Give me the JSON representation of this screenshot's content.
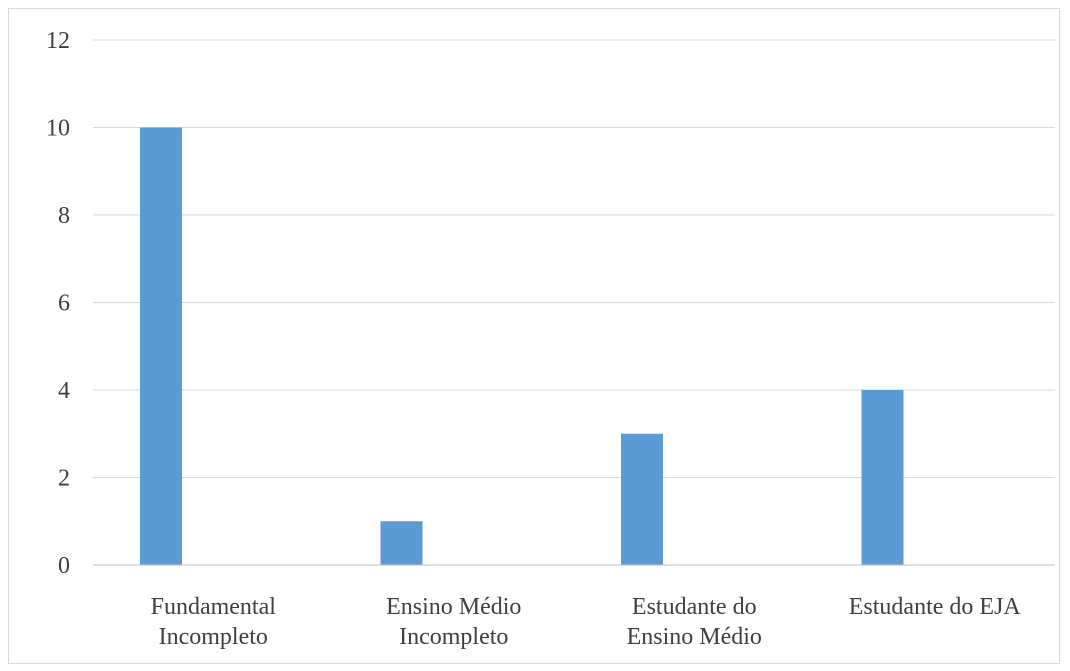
{
  "chart_data": {
    "type": "bar",
    "title": "",
    "xlabel": "",
    "ylabel": "",
    "categories": [
      [
        "Fundamental",
        "Incompleto"
      ],
      [
        "Ensino Médio",
        "Incompleto"
      ],
      [
        "Estudante do",
        "Ensino Médio"
      ],
      [
        "Estudante do EJA"
      ]
    ],
    "values": [
      10,
      1,
      3,
      4
    ],
    "ylim": [
      0,
      12
    ],
    "yticks": [
      "0",
      "2",
      "4",
      "6",
      "8",
      "10",
      "12"
    ],
    "grid": true,
    "legend": "none",
    "bar_color": "#5b9bd5",
    "grid_color": "#d9d9d9",
    "axis_color": "#bfbfbf",
    "text_color": "#404040"
  }
}
